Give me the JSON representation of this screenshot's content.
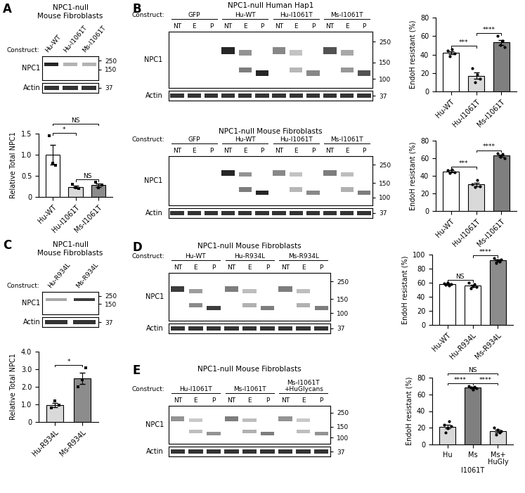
{
  "blots": [
    {
      "panel": "A",
      "title": "NPC1-null\nMouse Fibroblasts",
      "construct_label": "Construct:",
      "constructs": [
        "Hu-WT",
        "Hu-I1061T",
        "Ms-I1061T"
      ],
      "lanes": [],
      "signal": [
        1.0,
        0.35,
        0.35
      ],
      "rows": [
        "NPC1",
        "Actin"
      ],
      "markers": [
        250,
        150
      ],
      "actin_marker": 37
    },
    {
      "panel": "B",
      "title": "NPC1-null Human Hap1",
      "construct_label": "Construct:",
      "constructs": [
        "GFP",
        "Hu-WT",
        "Hu-I1061T",
        "Ms-I1061T"
      ],
      "lanes": [
        "NT",
        "E",
        "P"
      ],
      "signal": [
        0,
        1.0,
        0.55,
        0.8
      ],
      "rows": [
        "NPC1",
        "Actin"
      ],
      "markers": [
        250,
        150,
        100
      ],
      "actin_marker": 37
    },
    {
      "title": "NPC1-null Mouse Fibroblasts",
      "construct_label": "Construct:",
      "constructs": [
        "GFP",
        "Hu-WT",
        "Hu-I1061T",
        "Ms-I1061T"
      ],
      "lanes": [
        "NT",
        "E",
        "P"
      ],
      "signal": [
        0,
        1.0,
        0.55,
        0.6
      ],
      "rows": [
        "NPC1",
        "Actin"
      ],
      "markers": [
        250,
        150,
        100
      ],
      "actin_marker": 37
    },
    {
      "panel": "C",
      "title": "NPC1-null\nMouse Fibroblasts",
      "construct_label": "Construct:",
      "constructs": [
        "Hu-R934L",
        "Ms-R934L"
      ],
      "lanes": [],
      "signal": [
        0.4,
        0.9
      ],
      "rows": [
        "NPC1",
        "Actin"
      ],
      "markers": [
        250,
        150
      ],
      "actin_marker": 37
    },
    {
      "panel": "D",
      "title": "NPC1-null Mouse Fibroblasts",
      "construct_label": "Construct:",
      "constructs": [
        "Hu-WT",
        "Hu-R934L",
        "Ms-R934L"
      ],
      "lanes": [
        "NT",
        "E",
        "P"
      ],
      "signal": [
        0.9,
        0.6,
        0.6
      ],
      "rows": [
        "NPC1",
        "Actin"
      ],
      "markers": [
        250,
        150,
        100
      ],
      "actin_marker": 37
    },
    {
      "panel": "E",
      "title": "NPC1-null Mouse Fibroblasts",
      "construct_label": "Construct:",
      "constructs": [
        "Hu-I1061T",
        "Ms-I1061T",
        "Ms-I1061T\n+HuGlycans"
      ],
      "lanes": [
        "NT",
        "E",
        "P"
      ],
      "signal": [
        0.5,
        0.6,
        0.5
      ],
      "rows": [
        "NPC1",
        "Actin"
      ],
      "markers": [
        250,
        150,
        100
      ],
      "actin_marker": 37
    }
  ],
  "chart_data": [
    {
      "type": "bar",
      "ylabel": "Relative Total NPC1",
      "categories": [
        "Hu-WT",
        "Hu-I1061T",
        "Ms-I1061T"
      ],
      "values": [
        1.0,
        0.24,
        0.28
      ],
      "errors": [
        0.24,
        0.03,
        0.04
      ],
      "points": [
        [
          1.45,
          0.8,
          0.75
        ],
        [
          0.3,
          0.22,
          0.2
        ],
        [
          0.35,
          0.22,
          0.28
        ]
      ],
      "colors": [
        "#ffffff",
        "#d9d9d9",
        "#8c8c8c"
      ],
      "marker": "square",
      "ylim": [
        0,
        1.5
      ],
      "yticks": [
        0,
        0.5,
        {
          "value": 1,
          "label": "1.0"
        },
        1.5
      ],
      "significance": [
        {
          "pair": [
            0,
            1
          ],
          "label": "*"
        },
        {
          "pair": [
            1,
            2
          ],
          "label": "NS"
        },
        {
          "pair": [
            0,
            2
          ],
          "label": "NS"
        }
      ]
    },
    {
      "type": "bar",
      "ylabel": "EndoH resistant (%)",
      "categories": [
        "Hu-WT",
        "Hu-I1061T",
        "Ms-I1061T"
      ],
      "values": [
        42,
        17,
        53
      ],
      "errors": [
        1.8,
        3.2,
        2.7
      ],
      "points": [
        [
          44,
          38,
          46,
          41
        ],
        [
          25,
          10,
          18,
          14
        ],
        [
          60,
          50,
          55,
          48
        ]
      ],
      "colors": [
        "#ffffff",
        "#d9d9d9",
        "#7f7f7f"
      ],
      "marker": "circle",
      "ylim": [
        0,
        80
      ],
      "yticks": [
        0,
        20,
        40,
        60,
        80
      ],
      "significance": [
        {
          "pair": [
            0,
            1
          ],
          "label": "***"
        },
        {
          "pair": [
            1,
            2
          ],
          "label": "****"
        }
      ]
    },
    {
      "type": "bar",
      "ylabel": "EndoH resistant (%)",
      "categories": [
        "Hu-WT",
        "Hu-I1061T",
        "Ms-I1061T"
      ],
      "values": [
        45,
        30,
        63
      ],
      "errors": [
        1.0,
        1.8,
        1.4
      ],
      "points": [
        [
          46,
          43,
          47,
          44
        ],
        [
          30,
          27,
          35,
          28
        ],
        [
          66,
          62,
          65,
          60
        ]
      ],
      "colors": [
        "#ffffff",
        "#d9d9d9",
        "#7f7f7f"
      ],
      "marker": "circle",
      "ylim": [
        0,
        80
      ],
      "yticks": [
        0,
        20,
        40,
        60,
        80
      ],
      "significance": [
        {
          "pair": [
            0,
            1
          ],
          "label": "***"
        },
        {
          "pair": [
            1,
            2
          ],
          "label": "****"
        }
      ]
    },
    {
      "type": "bar",
      "ylabel": "Relative Total NPC1",
      "categories": [
        "Hu-R934L",
        "Ms-R934L"
      ],
      "values": [
        0.98,
        2.5
      ],
      "errors": [
        0.12,
        0.32
      ],
      "points": [
        [
          0.8,
          1.2,
          0.95
        ],
        [
          2.0,
          2.4,
          3.1
        ]
      ],
      "colors": [
        "#d9d9d9",
        "#8c8c8c"
      ],
      "marker": "square",
      "ylim": [
        0,
        4
      ],
      "yticks": [
        0,
        {
          "value": 1,
          "label": "1.0"
        },
        {
          "value": 2,
          "label": "2.0"
        },
        {
          "value": 3,
          "label": "3.0"
        },
        {
          "value": 4,
          "label": "4.0"
        }
      ],
      "significance": [
        {
          "pair": [
            0,
            1
          ],
          "label": "*"
        }
      ]
    },
    {
      "type": "bar",
      "ylabel": "EndoH resistant (%)",
      "categories": [
        "Hu-WT",
        "Hu-R934L",
        "Ms-R934L"
      ],
      "values": [
        58,
        55.8,
        91.6
      ],
      "errors": [
        0.9,
        1.7,
        1.3
      ],
      "points": [
        [
          59,
          57,
          60,
          56,
          58
        ],
        [
          60,
          52,
          55,
          58,
          54
        ],
        [
          95,
          88,
          92,
          90,
          93
        ]
      ],
      "colors": [
        "#ffffff",
        "#ffffff",
        "#8c8c8c"
      ],
      "marker": "circle",
      "ylim": [
        0,
        100
      ],
      "yticks": [
        0,
        20,
        40,
        60,
        80,
        100
      ],
      "significance": [
        {
          "pair": [
            0,
            1
          ],
          "label": "NS"
        },
        {
          "pair": [
            1,
            2
          ],
          "label": "****"
        }
      ]
    },
    {
      "type": "bar",
      "ylabel": "EndoH resistant (%)",
      "xlabel": "I1061T",
      "categories": [
        "Hu",
        "Ms",
        "Ms+\nHuGly"
      ],
      "values": [
        21.4,
        68,
        16
      ],
      "errors": [
        2.4,
        0.7,
        1.4
      ],
      "points": [
        [
          24,
          14,
          19,
          28,
          22
        ],
        [
          70,
          68,
          66,
          69,
          67
        ],
        [
          20,
          12,
          18,
          14,
          16
        ]
      ],
      "colors": [
        "#d9d9d9",
        "#7f7f7f",
        "#d9d9d9"
      ],
      "marker": "circle",
      "ylim": [
        0,
        80
      ],
      "yticks": [
        0,
        20,
        40,
        60,
        80
      ],
      "significance": [
        {
          "pair": [
            0,
            1
          ],
          "label": "****"
        },
        {
          "pair": [
            1,
            2
          ],
          "label": "****"
        },
        {
          "pair": [
            0,
            2
          ],
          "label": "NS"
        }
      ]
    }
  ]
}
